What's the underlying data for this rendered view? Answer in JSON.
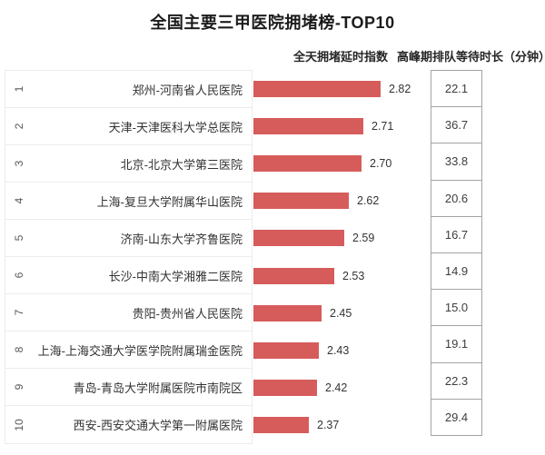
{
  "title": "全国主要三甲医院拥堵榜-TOP10",
  "columns": {
    "index_header": "全天拥堵延时指数",
    "wait_header": "高峰期排队等待时长（分钟）"
  },
  "colors": {
    "bar": "#d65c5b",
    "row_border": "#ececec",
    "box_border": "#a3a3a3",
    "text_dark": "#333333",
    "rank_text": "#595959"
  },
  "rows": [
    {
      "rank": "1",
      "name": "郑州-河南省人民医院",
      "index": "2.82",
      "wait": "22.1"
    },
    {
      "rank": "2",
      "name": "天津-天津医科大学总医院",
      "index": "2.71",
      "wait": "36.7"
    },
    {
      "rank": "3",
      "name": "北京-北京大学第三医院",
      "index": "2.70",
      "wait": "33.8"
    },
    {
      "rank": "4",
      "name": "上海-复旦大学附属华山医院",
      "index": "2.62",
      "wait": "20.6"
    },
    {
      "rank": "5",
      "name": "济南-山东大学齐鲁医院",
      "index": "2.59",
      "wait": "16.7"
    },
    {
      "rank": "6",
      "name": "长沙-中南大学湘雅二医院",
      "index": "2.53",
      "wait": "14.9"
    },
    {
      "rank": "7",
      "name": "贵阳-贵州省人民医院",
      "index": "2.45",
      "wait": "15.0"
    },
    {
      "rank": "8",
      "name": "上海-上海交通大学医学院附属瑞金医院",
      "index": "2.43",
      "wait": "19.1"
    },
    {
      "rank": "9",
      "name": "青岛-青岛大学附属医院市南院区",
      "index": "2.42",
      "wait": "22.3"
    },
    {
      "rank": "10",
      "name": "西安-西安交通大学第一附属医院",
      "index": "2.37",
      "wait": "29.4"
    }
  ],
  "chart_data": {
    "type": "bar",
    "orientation": "horizontal",
    "title": "全国主要三甲医院拥堵榜-TOP10",
    "categories": [
      "郑州-河南省人民医院",
      "天津-天津医科大学总医院",
      "北京-北京大学第三医院",
      "上海-复旦大学附属华山医院",
      "济南-山东大学齐鲁医院",
      "长沙-中南大学湘雅二医院",
      "贵阳-贵州省人民医院",
      "上海-上海交通大学医学院附属瑞金医院",
      "青岛-青岛大学附属医院市南院区",
      "西安-西安交通大学第一附属医院"
    ],
    "ranks": [
      1,
      2,
      3,
      4,
      5,
      6,
      7,
      8,
      9,
      10
    ],
    "series": [
      {
        "name": "全天拥堵延时指数",
        "values": [
          2.82,
          2.71,
          2.7,
          2.62,
          2.59,
          2.53,
          2.45,
          2.43,
          2.42,
          2.37
        ]
      },
      {
        "name": "高峰期排队等待时长（分钟）",
        "values": [
          22.1,
          36.7,
          33.8,
          20.6,
          16.7,
          14.9,
          15.0,
          19.1,
          22.3,
          29.4
        ]
      }
    ],
    "xlim": [
      2.02,
      2.9
    ],
    "value_labels": true,
    "grid": false,
    "legend_position": "top-right-as-column-headers"
  }
}
